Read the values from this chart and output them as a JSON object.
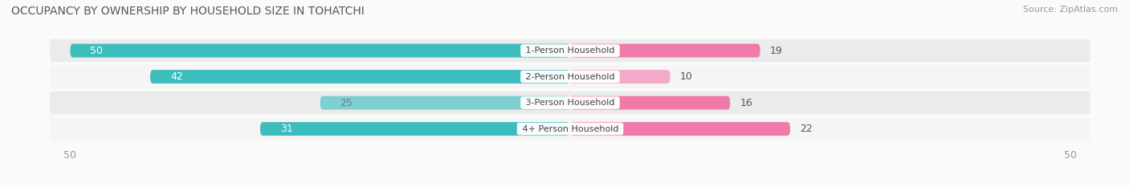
{
  "title": "OCCUPANCY BY OWNERSHIP BY HOUSEHOLD SIZE IN TOHATCHI",
  "source": "Source: ZipAtlas.com",
  "categories": [
    "1-Person Household",
    "2-Person Household",
    "3-Person Household",
    "4+ Person Household"
  ],
  "owner_values": [
    50,
    42,
    25,
    31
  ],
  "renter_values": [
    19,
    10,
    16,
    22
  ],
  "owner_colors": [
    "#3DBDBD",
    "#3DBDBD",
    "#7ED0D0",
    "#3DBDBD"
  ],
  "renter_colors": [
    "#F07AAA",
    "#F2AAC8",
    "#F07AAA",
    "#F07AAA"
  ],
  "owner_text_colors": [
    "#FFFFFF",
    "#FFFFFF",
    "#777777",
    "#FFFFFF"
  ],
  "renter_text_color": "#555555",
  "row_bg_colors": [
    "#E8E8E8",
    "#F5F5F5",
    "#EBEBEB",
    "#E0E0E0"
  ],
  "axis_max": 50,
  "legend_owner_color": "#3DBDBD",
  "legend_renter_color": "#F07AAA",
  "title_fontsize": 10,
  "source_fontsize": 8,
  "bar_label_fontsize": 9,
  "category_fontsize": 8,
  "legend_fontsize": 9,
  "axis_tick_fontsize": 9,
  "bg_color": "#FAFAFA"
}
